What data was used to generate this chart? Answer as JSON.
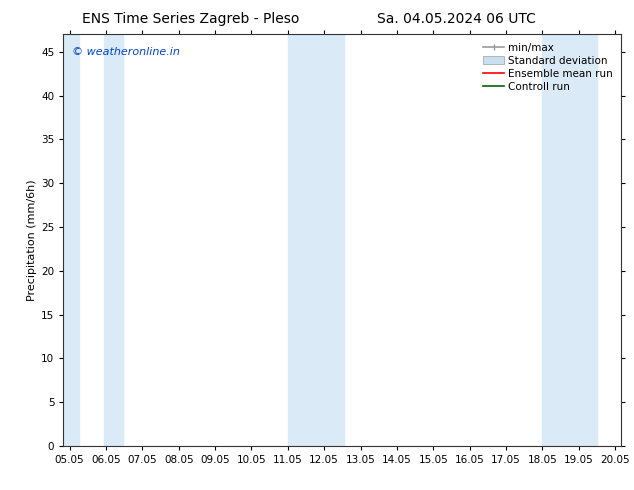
{
  "title_left": "ENS Time Series Zagreb - Pleso",
  "title_right": "Sa. 04.05.2024 06 UTC",
  "ylabel": "Precipitation (mm/6h)",
  "watermark": "© weatheronline.in",
  "watermark_color": "#0044cc",
  "background_color": "#ffffff",
  "plot_bg_color": "#ffffff",
  "shade_color": "#daeaf7",
  "x_start": 4.83,
  "x_end": 20.17,
  "ylim_min": 0,
  "ylim_max": 47,
  "yticks": [
    0,
    5,
    10,
    15,
    20,
    25,
    30,
    35,
    40,
    45
  ],
  "xtick_labels": [
    "05.05",
    "06.05",
    "07.05",
    "08.05",
    "09.05",
    "10.05",
    "11.05",
    "12.05",
    "13.05",
    "14.05",
    "15.05",
    "16.05",
    "17.05",
    "18.05",
    "19.05",
    "20.05"
  ],
  "xtick_positions": [
    5.0,
    6.0,
    7.0,
    8.0,
    9.0,
    10.0,
    11.0,
    12.0,
    13.0,
    14.0,
    15.0,
    16.0,
    17.0,
    18.0,
    19.0,
    20.0
  ],
  "shade_bands": [
    [
      4.83,
      5.25
    ],
    [
      5.96,
      6.46
    ],
    [
      11.0,
      12.54
    ],
    [
      18.0,
      19.5
    ]
  ],
  "legend_labels": [
    "min/max",
    "Standard deviation",
    "Ensemble mean run",
    "Controll run"
  ],
  "legend_colors_line": [
    "#999999",
    "#c0d8ee",
    "#ff0000",
    "#006600"
  ],
  "font_size_title": 10,
  "font_size_axis_label": 8,
  "font_size_ticks": 7.5,
  "font_size_legend": 7.5,
  "font_size_watermark": 8
}
